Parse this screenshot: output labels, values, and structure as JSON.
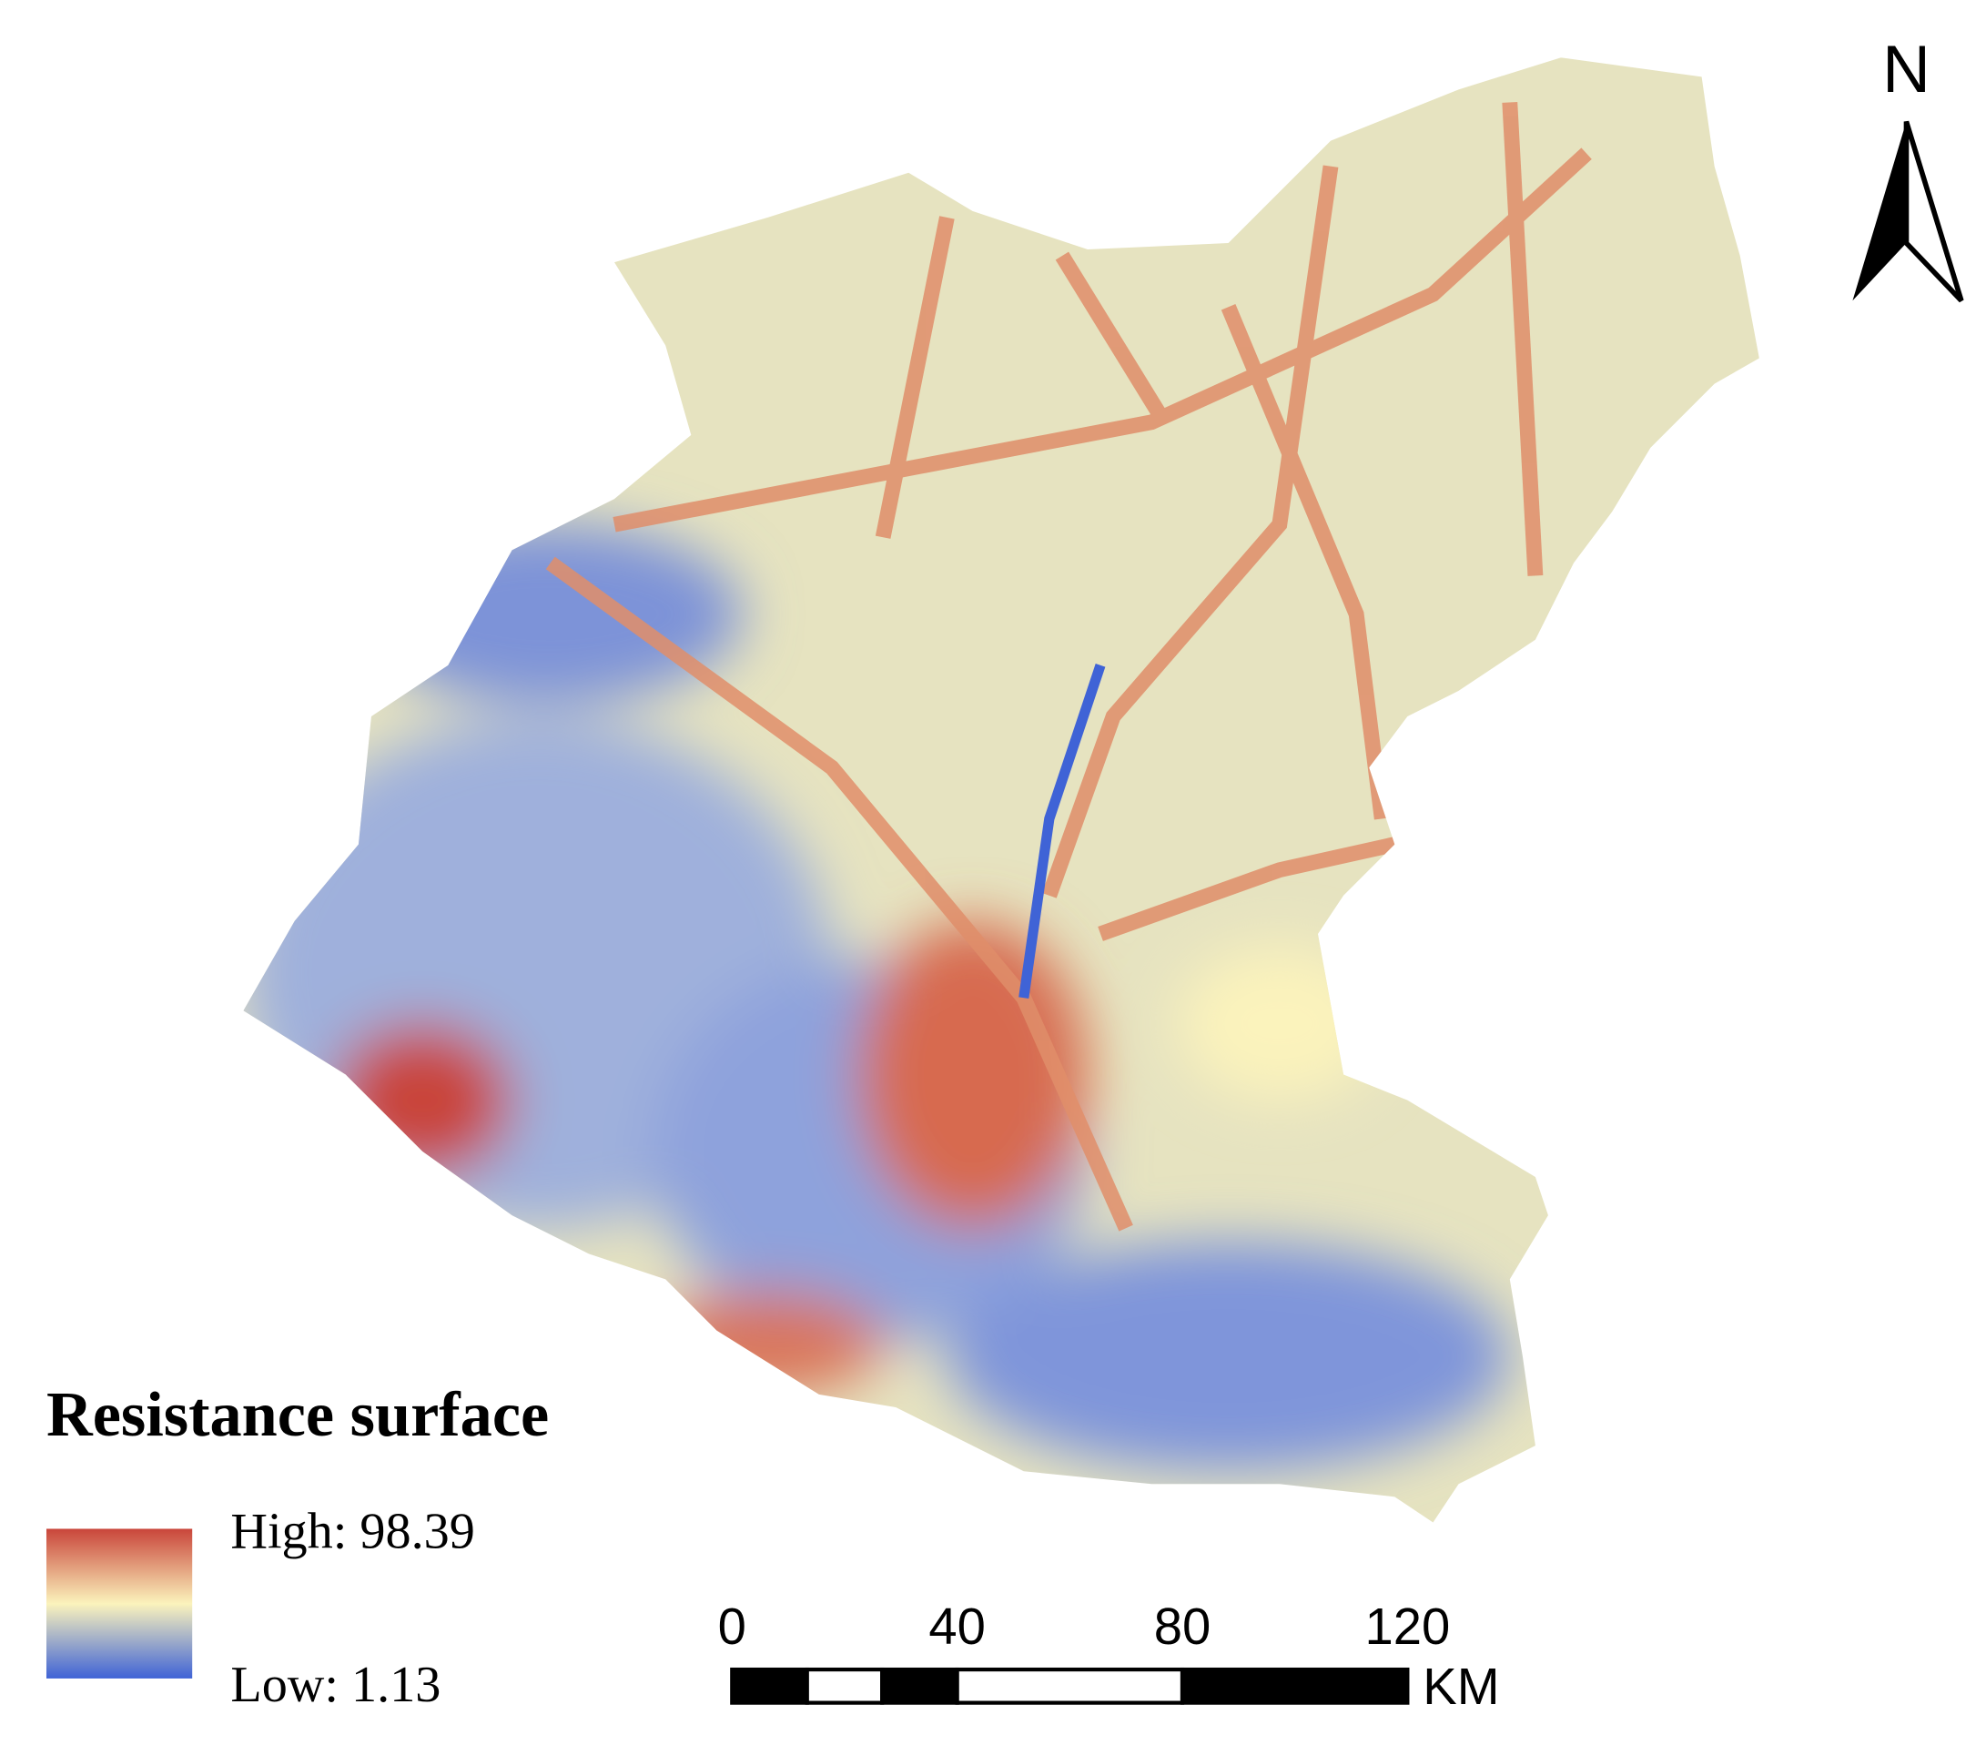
{
  "legend": {
    "title": "Resistance surface",
    "high": "High: 98.39",
    "low": "Low: 1.13"
  },
  "north_arrow": {
    "label": "N"
  },
  "scale_bar": {
    "ticks": [
      0,
      40,
      80,
      120
    ],
    "unit": "KM"
  }
}
